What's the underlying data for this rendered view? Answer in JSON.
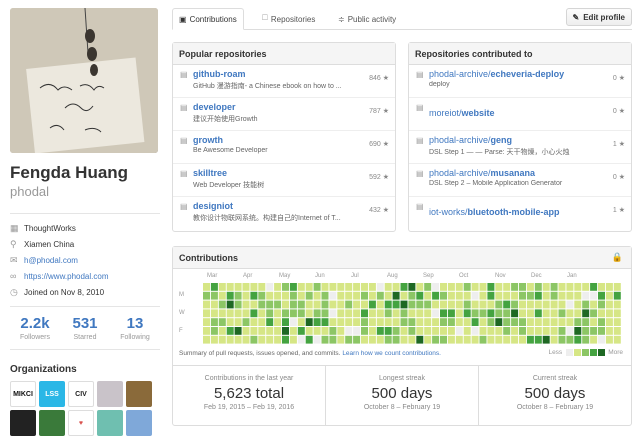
{
  "profile": {
    "fullname": "Fengda Huang",
    "username": "phodal",
    "company": "ThoughtWorks",
    "location": "Xiamen China",
    "email": "h@phodal.com",
    "website": "https://www.phodal.com",
    "joined": "Joined on Nov 8, 2010"
  },
  "stats": [
    {
      "num": "2.2k",
      "label": "Followers"
    },
    {
      "num": "531",
      "label": "Starred"
    },
    {
      "num": "13",
      "label": "Following"
    }
  ],
  "orgs_title": "Organizations",
  "orgs": [
    {
      "text": "MIKCI",
      "bg": "#ffffff",
      "fg": "#111111"
    },
    {
      "text": "LSS",
      "bg": "#2bb7e6",
      "fg": "#ffffff"
    },
    {
      "text": "CIV",
      "bg": "#ffffff",
      "fg": "#222222"
    },
    {
      "text": "",
      "bg": "#c9c3c9",
      "fg": "#333333"
    },
    {
      "text": "",
      "bg": "#8a6a3a",
      "fg": "#ffffff"
    },
    {
      "text": "",
      "bg": "#222222",
      "fg": "#ffffff"
    },
    {
      "text": "",
      "bg": "#3a7a3a",
      "fg": "#ffffff"
    },
    {
      "text": "♥",
      "bg": "#ffffff",
      "fg": "#d9534f"
    },
    {
      "text": "",
      "bg": "#6fbfb0",
      "fg": "#ffffff"
    },
    {
      "text": "",
      "bg": "#7fa8d9",
      "fg": "#ffffff"
    }
  ],
  "tabs": [
    {
      "label": "Contributions",
      "icon": "contributions-icon"
    },
    {
      "label": "Repositories",
      "icon": "repo-icon"
    },
    {
      "label": "Public activity",
      "icon": "rss-icon"
    }
  ],
  "edit_profile": "Edit profile",
  "popular": {
    "title": "Popular repositories",
    "repos": [
      {
        "name": "github-roam",
        "desc": "GitHub 漫游指南- a Chinese ebook on how to ...",
        "stars": "846 ★"
      },
      {
        "name": "developer",
        "desc": "建议开始使用Growth",
        "stars": "787 ★"
      },
      {
        "name": "growth",
        "desc": "Be Awesome Developer",
        "stars": "690 ★"
      },
      {
        "name": "skilltree",
        "desc": "Web Developer 技能树",
        "stars": "592 ★"
      },
      {
        "name": "designiot",
        "desc": "教你设计物联网系统。构建自己的Internet of T...",
        "stars": "432 ★"
      }
    ]
  },
  "contributed": {
    "title": "Repositories contributed to",
    "repos": [
      {
        "owner": "phodal-archive/",
        "name": "echeveria-deploy",
        "desc": "deploy",
        "stars": "0 ★"
      },
      {
        "owner": "moreiot/",
        "name": "website",
        "desc": "",
        "stars": "0 ★"
      },
      {
        "owner": "phodal-archive/",
        "name": "geng",
        "desc": "DSL Step 1 — — Parse: 天干物燥，小心火烛",
        "stars": "1 ★"
      },
      {
        "owner": "phodal-archive/",
        "name": "musanana",
        "desc": "DSL Step 2 – Mobile Application Generator",
        "stars": "0 ★"
      },
      {
        "owner": "iot-works/",
        "name": "bluetooth-mobile-app",
        "desc": "",
        "stars": "1 ★"
      }
    ]
  },
  "contributions": {
    "title": "Contributions",
    "months": [
      "Mar",
      "Apr",
      "May",
      "Jun",
      "Jul",
      "Aug",
      "Sep",
      "Oct",
      "Nov",
      "Dec",
      "Jan"
    ],
    "days": [
      "M",
      "W",
      "F"
    ],
    "summary": "Summary of pull requests, issues opened, and commits.",
    "learn_link": "Learn how we count contributions.",
    "less": "Less",
    "more": "More",
    "colors": [
      "#eeeeee",
      "#d6e685",
      "#8cc665",
      "#44a340",
      "#1e6823"
    ],
    "streaks": [
      {
        "title": "Contributions in the last year",
        "value": "5,623 total",
        "range": "Feb 19, 2015 – Feb 19, 2016"
      },
      {
        "title": "Longest streak",
        "value": "500 days",
        "range": "October 8 – February 19"
      },
      {
        "title": "Current streak",
        "value": "500 days",
        "range": "October 8 – February 19"
      }
    ]
  }
}
